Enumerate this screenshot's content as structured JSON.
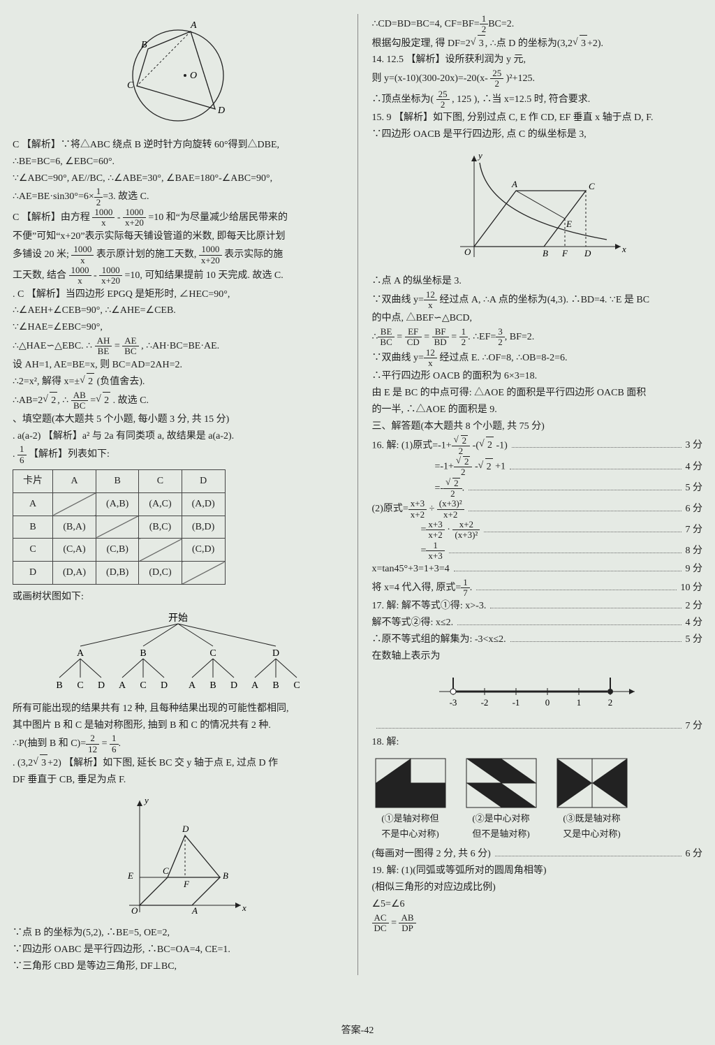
{
  "left": {
    "l1": "C 【解析】∵将△ABC 绕点 B 逆时针方向旋转 60°得到△DBE,",
    "l2": "∴BE=BC=6, ∠EBC=60°.",
    "l3": "∵∠ABC=90°, AE//BC, ∴∠ABE=30°, ∠BAE=180°-∠ABC=90°,",
    "l4": "∴AE=BE·sin30°=6×",
    "l4b": "=3. 故选 C.",
    "l5": "C 【解析】由方程",
    "l5b": "=10 和“为尽量减少给居民带来的",
    "l6": "不便”可知“x+20”表示实际每天铺设管道的米数, 即每天比原计划",
    "l7": "多铺设 20 米;",
    "l7b": "表示原计划的施工天数,",
    "l7c": "表示实际的施",
    "l8": "工天数, 结合",
    "l8b": "=10, 可知结果提前 10 天完成. 故选 C.",
    "l9": ". C 【解析】当四边形 EPGQ 是矩形时, ∠HEC=90°,",
    "l10": "∴∠AEH+∠CEB=90°, ∴∠AHE=∠CEB.",
    "l11": "∵∠HAE=∠EBC=90°,",
    "l12": "∴△HAE∽△EBC. ∴",
    "l12b": ", ∴AH·BC=BE·AE.",
    "l13": "设 AH=1, AE=BE=x, 则 BC=AD=2AH=2.",
    "l14": "∴2=x², 解得 x=±",
    "l14b": "(负值舍去).",
    "l15": "∴AB=2",
    "l15b": ", ∴",
    "l15c": " . 故选 C.",
    "sec2": "、填空题(本大题共 5 个小题, 每小题 3 分, 共 15 分)",
    "l16": ". a(a-2)  【解析】a² 与 2a 有同类项 a, 故结果是 a(a-2).",
    "l17": "  【解析】列表如下:",
    "table": {
      "head": [
        "卡片",
        "A",
        "B",
        "C",
        "D"
      ],
      "rows": [
        [
          "A",
          "",
          "(A,B)",
          "(A,C)",
          "(A,D)"
        ],
        [
          "B",
          "(B,A)",
          "",
          "(B,C)",
          "(B,D)"
        ],
        [
          "C",
          "(C,A)",
          "(C,B)",
          "",
          "(C,D)"
        ],
        [
          "D",
          "(D,A)",
          "(D,B)",
          "(D,C)",
          ""
        ]
      ],
      "diag": [
        [
          0,
          1
        ],
        [
          1,
          2
        ],
        [
          2,
          3
        ],
        [
          3,
          4
        ]
      ]
    },
    "l18": "或画树状图如下:",
    "tree": {
      "root": "开始",
      "l1": [
        "A",
        "B",
        "C",
        "D"
      ],
      "l2": [
        [
          "B",
          "C",
          "D"
        ],
        [
          "A",
          "C",
          "D"
        ],
        [
          "A",
          "B",
          "D"
        ],
        [
          "A",
          "B",
          "C"
        ]
      ]
    },
    "l19": "所有可能出现的结果共有 12 种, 且每种结果出现的可能性都相同,",
    "l20": "其中图片 B 和 C 是轴对称图形, 抽到 B 和 C 的情况共有 2 种.",
    "l21": "∴P(抽到 B 和 C)=",
    "l22": ". (3,2",
    "l22b": "+2)  【解析】如下图, 延长 BC 交 y 轴于点 E, 过点 D 作",
    "l23": "DF 垂直于 CB, 垂足为点 F.",
    "l24": "∵点 B 的坐标为(5,2), ∴BE=5, OE=2,",
    "l25": "∵四边形 OABC 是平行四边形, ∴BC=OA=4, CE=1.",
    "l26": "∵三角形 CBD 是等边三角形, DF⊥BC,"
  },
  "right": {
    "r1": "∴CD=BD=BC=4, CF=BF=",
    "r1b": "BC=2.",
    "r2": "根据勾股定理, 得 DF=2",
    "r2b": ", ∴点 D 的坐标为(3,2",
    "r2c": "+2).",
    "r3": "14. 12.5  【解析】设所获利润为 y 元,",
    "r4": "则 y=(x-10)(300-20x)=-20",
    "r4b": "+125.",
    "r5": "∴顶点坐标为",
    "r5b": ", ∴当 x=12.5 时, 符合要求.",
    "r6": "15. 9  【解析】如下图, 分别过点 C, E 作 CD, EF 垂直 x 轴于点 D, F.",
    "r7": "∵四边形 OACB 是平行四边形, 点 C 的纵坐标是 3,",
    "r8": "∴点 A 的纵坐标是 3.",
    "r9": "∵双曲线 y=",
    "r9b": " 经过点 A, ∴A 点的坐标为(4,3). ∴BD=4. ∵E 是 BC",
    "r10": "的中点, △BEF∽△BCD,",
    "r11": "∴",
    "r11b": ". ∴EF=",
    "r11c": ", BF=2.",
    "r12": "∵双曲线 y=",
    "r12b": " 经过点 E. ∴OF=8, ∴OB=8-2=6.",
    "r13": "∴平行四边形 OACB 的面积为 6×3=18.",
    "r14": "由 E 是 BC 的中点可得: △AOE 的面积是平行四边形 OACB 面积",
    "r15": "的一半, ∴△AOE 的面积是 9.",
    "sec3": "三、解答题(本大题共 8 个小题, 共 75 分)",
    "q16": {
      "l1p": "16. 解: (1)原式=-1+",
      "l1s": "3 分",
      "l2p": "=-1+",
      "l2s": "4 分",
      "l3p": "=-",
      "l3s": "5 分",
      "l4p": "(2)原式=",
      "l4s": "6 分",
      "l5p": "=",
      "l5s": "7 分",
      "l6p": "=",
      "l6s": "8 分",
      "l7p": "x=tan45°+3=1+3=4",
      "l7s": "9 分",
      "l8p": "将 x=4 代入得, 原式=",
      "l8s": "10 分"
    },
    "q17": {
      "l1p": "17. 解: 解不等式①得: x>-3.",
      "l1s": "2 分",
      "l2p": "解不等式②得: x≤2.",
      "l2s": "4 分",
      "l3p": "∴原不等式组的解集为: -3<x≤2.",
      "l3s": "5 分",
      "l4": "在数轴上表示为",
      "nl": {
        "ticks": [
          "-3",
          "-2",
          "-1",
          "0",
          "1",
          "2"
        ]
      },
      "l5s": "7 分"
    },
    "q18": {
      "head": "18. 解:",
      "cap1": "(①是轴对称但",
      "cap1b": "不是中心对称)",
      "cap2": "(②是中心对称",
      "cap2b": "但不是轴对称)",
      "cap3": "(③既是轴对称",
      "cap3b": "又是中心对称)",
      "sc": "(每画对一图得 2 分, 共 6 分)",
      "scs": "6 分"
    },
    "q19": {
      "l1": "19. 解: (1)(同弧或等弧所对的圆周角相等)",
      "l2": "(相似三角形的对应边成比例)",
      "l3": "∠5=∠6",
      "l4a": "AC",
      "l4b": "DC",
      "l4c": "AB",
      "l4d": "DP"
    }
  },
  "footer": "答案-42"
}
